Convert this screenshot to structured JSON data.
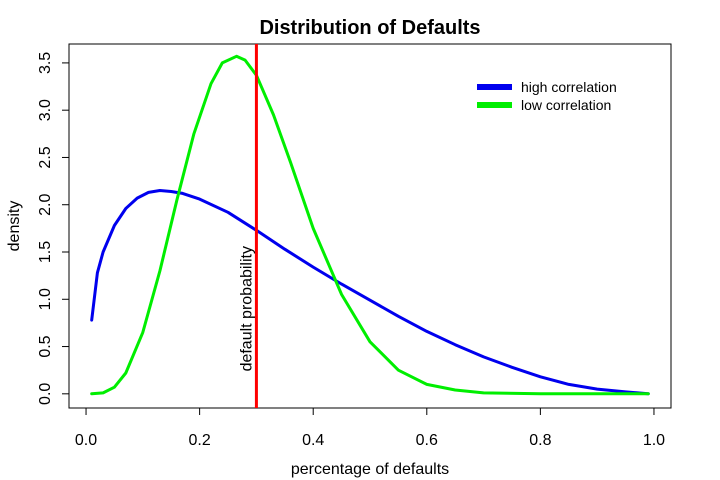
{
  "chart_data": {
    "type": "line",
    "title": "Distribution of Defaults",
    "xlabel": "percentage of defaults",
    "ylabel": "density",
    "xlim": [
      -0.03,
      1.03
    ],
    "ylim": [
      -0.15,
      3.7
    ],
    "x_ticks": [
      0.0,
      0.2,
      0.4,
      0.6,
      0.8,
      1.0
    ],
    "x_tick_labels": [
      "0.0",
      "0.2",
      "0.4",
      "0.6",
      "0.8",
      "1.0"
    ],
    "y_ticks": [
      0.0,
      0.5,
      1.0,
      1.5,
      2.0,
      2.5,
      3.0,
      3.5
    ],
    "y_tick_labels": [
      "0.0",
      "0.5",
      "1.0",
      "1.5",
      "2.0",
      "2.5",
      "3.0",
      "3.5"
    ],
    "grid": false,
    "legend_position": "top-right",
    "series": [
      {
        "name": "high correlation",
        "color": "#0000ee",
        "x": [
          0.01,
          0.02,
          0.03,
          0.05,
          0.07,
          0.09,
          0.11,
          0.13,
          0.15,
          0.17,
          0.2,
          0.25,
          0.3,
          0.35,
          0.4,
          0.45,
          0.5,
          0.55,
          0.6,
          0.65,
          0.7,
          0.75,
          0.8,
          0.85,
          0.9,
          0.95,
          0.99
        ],
        "y": [
          0.78,
          1.28,
          1.5,
          1.78,
          1.96,
          2.07,
          2.13,
          2.15,
          2.14,
          2.12,
          2.06,
          1.92,
          1.73,
          1.53,
          1.34,
          1.16,
          0.99,
          0.82,
          0.66,
          0.52,
          0.39,
          0.28,
          0.18,
          0.1,
          0.05,
          0.02,
          0.0
        ]
      },
      {
        "name": "low correlation",
        "color": "#00ee00",
        "x": [
          0.01,
          0.03,
          0.05,
          0.07,
          0.1,
          0.13,
          0.16,
          0.19,
          0.22,
          0.24,
          0.265,
          0.28,
          0.3,
          0.33,
          0.36,
          0.4,
          0.45,
          0.5,
          0.55,
          0.6,
          0.65,
          0.7,
          0.8,
          0.9,
          0.99
        ],
        "y": [
          0.0,
          0.01,
          0.07,
          0.22,
          0.65,
          1.3,
          2.05,
          2.75,
          3.28,
          3.5,
          3.57,
          3.53,
          3.37,
          2.95,
          2.45,
          1.75,
          1.05,
          0.55,
          0.25,
          0.1,
          0.04,
          0.01,
          0.0,
          0.0,
          0.0
        ]
      }
    ],
    "vline": {
      "x": 0.3,
      "color": "#ff0000",
      "label": "default probability"
    }
  }
}
